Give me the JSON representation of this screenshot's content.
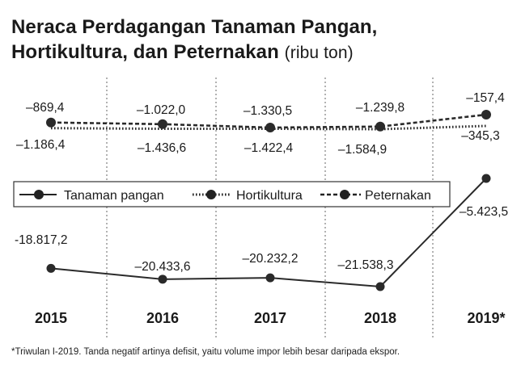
{
  "title_line1": "Neraca Perdagangan Tanaman Pangan,",
  "title_line2": "Hortikultura, dan Peternakan",
  "title_unit": "(ribu ton)",
  "footnote": "*Triwulan I-2019. Tanda negatif artinya defisit, yaitu volume impor lebih besar daripada ekspor.",
  "chart_data": {
    "type": "line",
    "title": "Neraca Perdagangan Tanaman Pangan, Hortikultura, dan Peternakan (ribu ton)",
    "categories": [
      "2015",
      "2016",
      "2017",
      "2018",
      "2019*"
    ],
    "series": [
      {
        "name": "Tanaman pangan",
        "values": [
          -18817.2,
          -20433.6,
          -20232.2,
          -21538.3,
          -5423.5
        ],
        "labels": [
          "-18.817,2",
          "–20.433,6",
          "–20.232,2",
          "–21.538,3",
          "–5.423,5"
        ],
        "line_style": "solid",
        "color": "#2a2a2a"
      },
      {
        "name": "Hortikultura",
        "values": [
          -1186.4,
          -1436.6,
          -1422.4,
          -1584.9,
          -345.3
        ],
        "labels": [
          "–1.186,4",
          "–1.436,6",
          "–1.422,4",
          "–1.584,9",
          "–345,3"
        ],
        "line_style": "dotted",
        "color": "#2a2a2a"
      },
      {
        "name": "Peternakan",
        "values": [
          -869.4,
          -1022.0,
          -1330.5,
          -1239.8,
          -157.4
        ],
        "labels": [
          "–869,4",
          "–1.022,0",
          "–1.330,5",
          "–1.239,8",
          "–157,4"
        ],
        "line_style": "dashed",
        "color": "#2a2a2a"
      }
    ],
    "legend_position": "middle",
    "grid": "vertical dashed separators between years"
  }
}
